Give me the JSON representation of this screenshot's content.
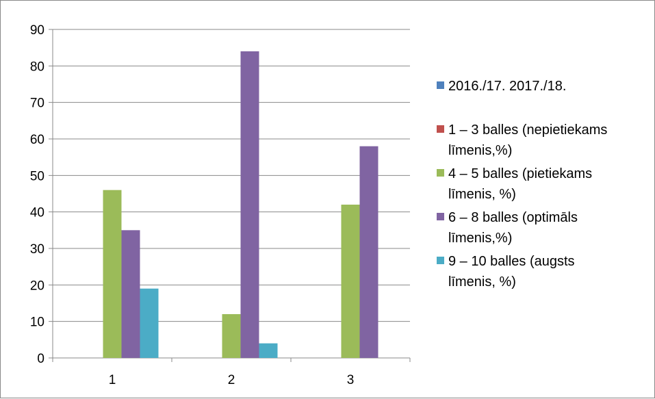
{
  "chart_data": {
    "type": "bar",
    "categories": [
      "1",
      "2",
      "3"
    ],
    "series": [
      {
        "name": "2016./17. 2017./18.",
        "name_lines": [
          "2016./17. 2017./18."
        ],
        "color": "#4F81BD",
        "values": [
          0,
          0,
          0
        ]
      },
      {
        "name": "1 – 3 balles (nepietiekams līmenis,%)",
        "name_lines": [
          "1 – 3 balles (nepietiekams",
          "līmenis,%)"
        ],
        "color": "#C0504D",
        "values": [
          0,
          0,
          0
        ]
      },
      {
        "name": "4 – 5 balles (pietiekams līmenis, %)",
        "name_lines": [
          "4 – 5 balles (pietiekams",
          "līmenis, %)"
        ],
        "color": "#9BBB59",
        "values": [
          46,
          12,
          42
        ]
      },
      {
        "name": "6 – 8 balles (optimāls līmenis,%)",
        "name_lines": [
          "6 – 8 balles (optimāls",
          "līmenis,%)"
        ],
        "color": "#8064A2",
        "values": [
          35,
          84,
          58
        ]
      },
      {
        "name": "9 – 10 balles (augsts līmenis, %)",
        "name_lines": [
          "9 – 10 balles (augsts",
          "līmenis, %)"
        ],
        "color": "#4BACC6",
        "values": [
          19,
          4,
          0
        ]
      }
    ],
    "yticks": [
      "0",
      "10",
      "20",
      "30",
      "40",
      "50",
      "60",
      "70",
      "80",
      "90"
    ],
    "ylim": [
      0,
      90
    ],
    "grid": true,
    "legend_position": "right",
    "title": "",
    "xlabel": "",
    "ylabel": ""
  }
}
